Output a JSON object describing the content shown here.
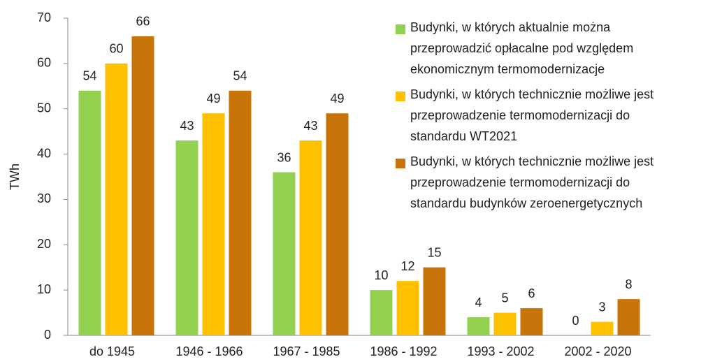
{
  "chart_data": {
    "type": "bar",
    "y_label": "TWh",
    "categories": [
      "do 1945",
      "1946 - 1966",
      "1967 - 1985",
      "1986 - 1992",
      "1993 - 2002",
      "2002 - 2020"
    ],
    "series": [
      {
        "name": "Budynki, w których aktualnie można\nprzeprowadzić opłacalne pod względem\nekonomicznym termomodernizacje",
        "color": "#92d050",
        "values": [
          54,
          43,
          36,
          10,
          4,
          0
        ]
      },
      {
        "name": "Budynki, w których technicznie możliwe jest\nprzeprowadzenie termomodernizacji do\nstandardu WT2021",
        "color": "#ffc000",
        "values": [
          60,
          49,
          43,
          12,
          5,
          3
        ]
      },
      {
        "name": "Budynki, w których technicznie możliwe jest\nprzeprowadzenie termomodernizacji do\nstandardu budynków zeroenergetycznych",
        "color": "#c97408",
        "values": [
          66,
          54,
          49,
          15,
          6,
          8
        ]
      }
    ],
    "ylim": [
      0,
      70
    ],
    "yticks": [
      0,
      10,
      20,
      30,
      40,
      50,
      60,
      70
    ],
    "grid": false,
    "legend": "upper right"
  }
}
